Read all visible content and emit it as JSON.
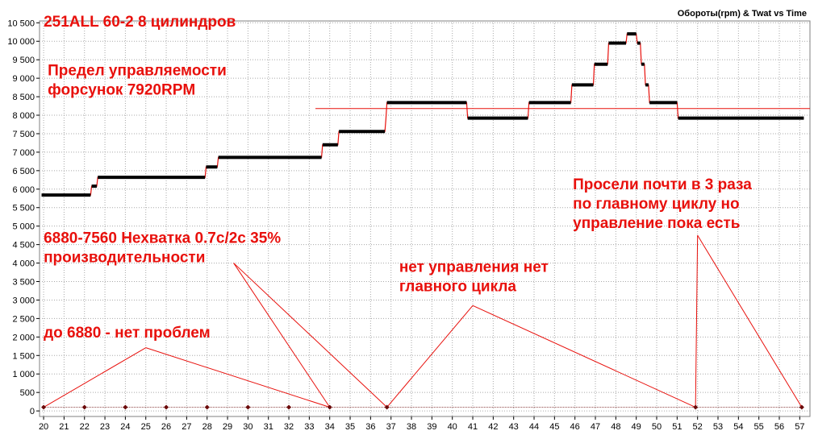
{
  "chart_data": {
    "type": "line",
    "title": "Обороты(rpm) & Twat vs Time",
    "xlabel": "",
    "ylabel": "",
    "xlim": [
      19.8,
      57.5
    ],
    "ylim": [
      -150,
      10550
    ],
    "grid": true,
    "x_ticks": [
      20,
      21,
      22,
      23,
      24,
      25,
      26,
      27,
      28,
      29,
      30,
      31,
      32,
      33,
      34,
      35,
      36,
      37,
      38,
      39,
      40,
      41,
      42,
      43,
      44,
      45,
      46,
      47,
      48,
      49,
      50,
      51,
      52,
      53,
      54,
      55,
      56,
      57
    ],
    "x_tick_labels": [
      "20",
      "21",
      "22",
      "23",
      "24",
      "25",
      "26",
      "27",
      "28",
      "29",
      "30",
      "31",
      "32",
      "33",
      "34",
      "35",
      "36",
      "37",
      "38",
      "39",
      "40",
      "41",
      "42",
      "43",
      "44",
      "45",
      "46",
      "47",
      "48",
      "49",
      "50",
      "51",
      "52",
      "53",
      "54",
      "55",
      "56",
      "57"
    ],
    "y_ticks": [
      0,
      500,
      1000,
      1500,
      2000,
      2500,
      3000,
      3500,
      4000,
      4500,
      5000,
      5500,
      6000,
      6500,
      7000,
      7500,
      8000,
      8500,
      9000,
      9500,
      10000,
      10500
    ],
    "y_tick_labels": [
      "0",
      "500",
      "1 000",
      "1 500",
      "2 000",
      "2 500",
      "3 000",
      "3 500",
      "4 000",
      "4 500",
      "5 000",
      "5 500",
      "6 000",
      "6 500",
      "7 000",
      "7 500",
      "8 000",
      "8 500",
      "9 000",
      "9 500",
      "10 000",
      "10 500"
    ],
    "series": [
      {
        "name": "",
        "color": "#000000",
        "step_color": "#e8100c",
        "values": [
          [
            19.9,
            5840
          ],
          [
            22.3,
            5840
          ],
          [
            22.35,
            6080
          ],
          [
            22.6,
            6080
          ],
          [
            22.65,
            6320
          ],
          [
            27.9,
            6320
          ],
          [
            27.95,
            6600
          ],
          [
            28.5,
            6600
          ],
          [
            28.55,
            6860
          ],
          [
            33.6,
            6860
          ],
          [
            33.65,
            7200
          ],
          [
            34.4,
            7200
          ],
          [
            34.45,
            7560
          ],
          [
            36.7,
            7560
          ],
          [
            36.75,
            7900
          ],
          [
            36.8,
            8340
          ],
          [
            40.7,
            8340
          ],
          [
            40.75,
            7920
          ],
          [
            43.7,
            7920
          ],
          [
            43.75,
            8340
          ],
          [
            45.8,
            8340
          ],
          [
            45.85,
            8820
          ],
          [
            46.9,
            8820
          ],
          [
            46.95,
            9380
          ],
          [
            47.6,
            9380
          ],
          [
            47.65,
            9950
          ],
          [
            48.5,
            9950
          ],
          [
            48.55,
            10200
          ],
          [
            49.0,
            10200
          ],
          [
            49.05,
            9950
          ],
          [
            49.2,
            9950
          ],
          [
            49.25,
            9380
          ],
          [
            49.4,
            9380
          ],
          [
            49.45,
            8820
          ],
          [
            49.6,
            8820
          ],
          [
            49.65,
            8340
          ],
          [
            51.0,
            8340
          ],
          [
            51.05,
            7920
          ],
          [
            57.2,
            7920
          ]
        ]
      },
      {
        "name": "",
        "color": "#6b0a0a",
        "values": [
          [
            20,
            100
          ],
          [
            22,
            100
          ],
          [
            24,
            100
          ],
          [
            26,
            100
          ],
          [
            28,
            100
          ],
          [
            30,
            100
          ],
          [
            32,
            100
          ],
          [
            34,
            100
          ],
          [
            36.8,
            100
          ],
          [
            51.9,
            100
          ],
          [
            57.1,
            100
          ]
        ]
      }
    ],
    "reference_line": {
      "y": 8180,
      "x_from": 33.3,
      "x_to": 57.5,
      "color": "#e8100c"
    },
    "annotations": [
      {
        "lines": [
          "251ALL 60-2 8 цилиндров"
        ],
        "x": 20.0,
        "y": 10400,
        "pointers": []
      },
      {
        "lines": [
          "Предел управляемости",
          "форсунок 7920RPM"
        ],
        "x": 20.2,
        "y": 9080,
        "pointers": []
      },
      {
        "lines": [
          "6880-7560 Нехватка 0.7с/2с 35%",
          "производительности"
        ],
        "x": 20.0,
        "y": 4550,
        "pointers": [
          {
            "from": [
              29.3,
              4000
            ],
            "to": [
              34.0,
              100
            ]
          },
          {
            "from": [
              29.3,
              4000
            ],
            "to": [
              36.8,
              100
            ]
          }
        ]
      },
      {
        "lines": [
          "до 6880 - нет проблем"
        ],
        "x": 20.0,
        "y": 1990,
        "pointers": [
          {
            "from": [
              25.0,
              1710
            ],
            "to": [
              20.0,
              100
            ]
          },
          {
            "from": [
              25.0,
              1710
            ],
            "to": [
              34.0,
              100
            ]
          }
        ]
      },
      {
        "lines": [
          "нет управления нет",
          "главного цикла"
        ],
        "x": 37.4,
        "y": 3760,
        "pointers": [
          {
            "from": [
              41.0,
              2850
            ],
            "to": [
              36.8,
              100
            ]
          },
          {
            "from": [
              41.0,
              2850
            ],
            "to": [
              51.9,
              100
            ]
          }
        ]
      },
      {
        "lines": [
          "Просели почти в 3 раза",
          "по главному циклу но",
          "управление пока есть"
        ],
        "x": 45.9,
        "y": 5990,
        "pointers": [
          {
            "from": [
              52.0,
              4750
            ],
            "to": [
              51.9,
              100
            ]
          },
          {
            "from": [
              52.0,
              4750
            ],
            "to": [
              57.1,
              100
            ]
          }
        ]
      }
    ]
  }
}
